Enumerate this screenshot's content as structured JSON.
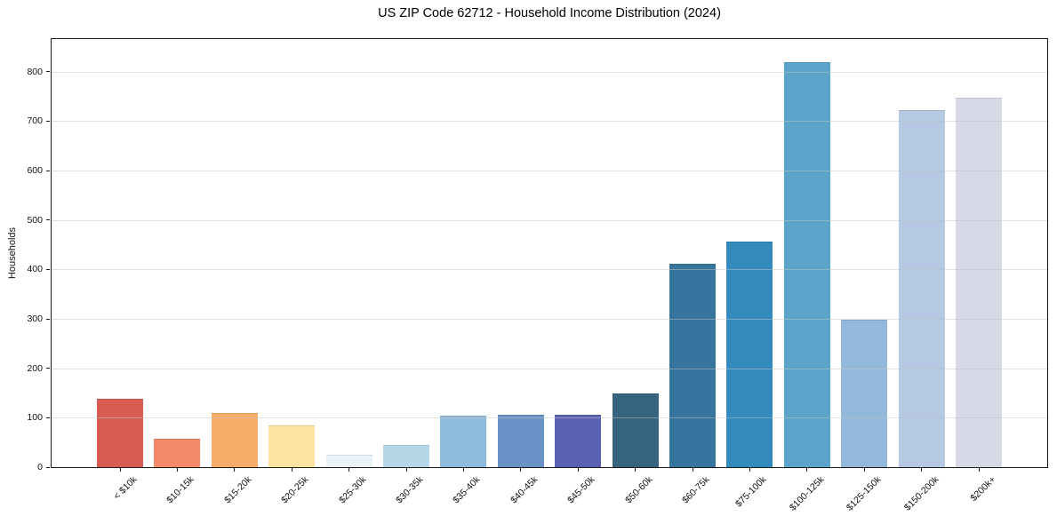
{
  "title": "US ZIP Code 62712 - Household Income Distribution (2024)",
  "chart_data": {
    "type": "bar",
    "title": "US ZIP Code 62712 - Household Income Distribution (2024)",
    "xlabel": "",
    "ylabel": "Households",
    "categories": [
      "< $10k",
      "$10-15k",
      "$15-20k",
      "$20-25k",
      "$25-30k",
      "$30-35k",
      "$35-40k",
      "$40-45k",
      "$45-50k",
      "$50-60k",
      "$60-75k",
      "$75-100k",
      "$100-125k",
      "$125-150k",
      "$150-200k",
      "$200k+"
    ],
    "values": [
      139,
      57,
      109,
      85,
      25,
      45,
      104,
      106,
      106,
      150,
      411,
      457,
      820,
      299,
      723,
      747
    ],
    "bar_colors": [
      "#d85c52",
      "#f4896a",
      "#f7ad6a",
      "#fce3a0",
      "#e8f2f7",
      "#b4d8e8",
      "#8fbcdc",
      "#6b93c8",
      "#5a60b2",
      "#36647f",
      "#36759e",
      "#338abc",
      "#5aa5c9",
      "#92b8da",
      "#b5c9e2",
      "#d7d9e7"
    ],
    "ylim": [
      0,
      866
    ],
    "yticks": [
      0,
      100,
      200,
      300,
      400,
      500,
      600,
      700,
      800
    ],
    "grid": "horizontal",
    "legend": "none"
  },
  "colors": {
    "background": "#ffffff",
    "spine": "#1a1a1a",
    "gridline": "#c9c9c9",
    "text": "#000000"
  }
}
